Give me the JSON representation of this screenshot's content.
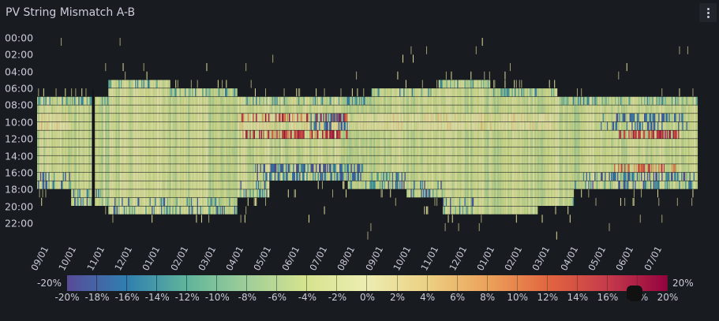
{
  "panel": {
    "title": "PV String Mismatch A-B",
    "menu_icon": "kebab-menu-icon"
  },
  "chart_data": {
    "type": "heatmap",
    "title": "PV String Mismatch A-B",
    "x_tick_labels": [
      "09/01",
      "10/01",
      "11/01",
      "12/01",
      "01/01",
      "02/01",
      "03/01",
      "04/01",
      "05/01",
      "06/01",
      "07/01",
      "08/01",
      "09/01",
      "10/01",
      "11/01",
      "12/01",
      "01/01",
      "02/01",
      "03/01",
      "04/01",
      "05/01",
      "06/01",
      "07/01"
    ],
    "y_tick_labels": [
      "00:00",
      "02:00",
      "04:00",
      "06:00",
      "08:00",
      "10:00",
      "12:00",
      "14:00",
      "16:00",
      "18:00",
      "20:00",
      "22:00"
    ],
    "color_scheme": "Spectral",
    "color_range": [
      -20,
      20
    ],
    "color_unit": "%",
    "legend": {
      "min_label": "-20%",
      "max_label": "20%",
      "ticks": [
        "-20%",
        "-18%",
        "-16%",
        "-14%",
        "-12%",
        "-10%",
        "-8%",
        "-6%",
        "-4%",
        "-2%",
        "0%",
        "2%",
        "4%",
        "6%",
        "8%",
        "10%",
        "12%",
        "14%",
        "16%",
        "18%",
        "20%"
      ],
      "placement": "bottom"
    },
    "colors": [
      "#5e4fa2",
      "#3288bd",
      "#66c2a5",
      "#abdda4",
      "#e6f598",
      "#ffffbf",
      "#fee08b",
      "#fdae61",
      "#f46d43",
      "#d53e4f",
      "#9e0142"
    ]
  }
}
